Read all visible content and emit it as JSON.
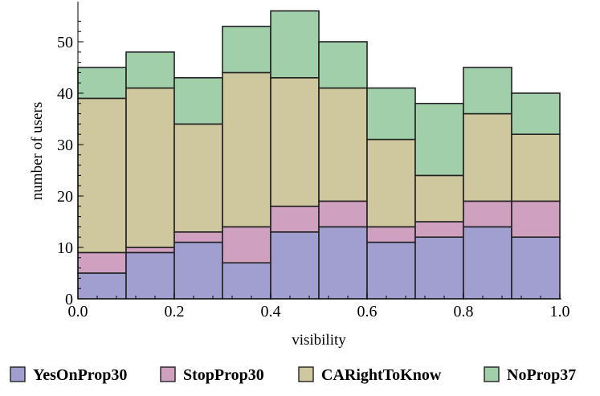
{
  "chart_data": {
    "type": "bar",
    "stacked": true,
    "title": "",
    "xlabel": "visibility",
    "ylabel": "number of users",
    "xlim": [
      0.0,
      1.0
    ],
    "ylim": [
      0,
      56
    ],
    "x_ticks": [
      0.0,
      0.2,
      0.4,
      0.6,
      0.8,
      1.0
    ],
    "x_tick_labels": [
      "0.0",
      "0.2",
      "0.4",
      "0.6",
      "0.8",
      "1.0"
    ],
    "y_ticks": [
      0,
      10,
      20,
      30,
      40,
      50
    ],
    "y_tick_labels": [
      "0",
      "10",
      "20",
      "30",
      "40",
      "50"
    ],
    "bins": [
      [
        0.0,
        0.1
      ],
      [
        0.1,
        0.2
      ],
      [
        0.2,
        0.3
      ],
      [
        0.3,
        0.4
      ],
      [
        0.4,
        0.5
      ],
      [
        0.5,
        0.6
      ],
      [
        0.6,
        0.7
      ],
      [
        0.7,
        0.8
      ],
      [
        0.8,
        0.9
      ],
      [
        0.9,
        1.0
      ]
    ],
    "grid": false,
    "legend_position": "bottom",
    "series": [
      {
        "name": "YesOnProp30",
        "color": "#a09fd0",
        "values": [
          5,
          9,
          11,
          7,
          13,
          14,
          11,
          12,
          14,
          12
        ]
      },
      {
        "name": "StopProp30",
        "color": "#cfa0c0",
        "values": [
          4,
          1,
          2,
          7,
          5,
          5,
          3,
          3,
          5,
          7
        ]
      },
      {
        "name": "CARightToKnow",
        "color": "#cfc79e",
        "values": [
          30,
          31,
          21,
          30,
          25,
          22,
          17,
          9,
          17,
          13
        ]
      },
      {
        "name": "NoProp37",
        "color": "#a0cfaa",
        "values": [
          6,
          7,
          9,
          9,
          13,
          9,
          10,
          14,
          9,
          8
        ]
      }
    ]
  }
}
